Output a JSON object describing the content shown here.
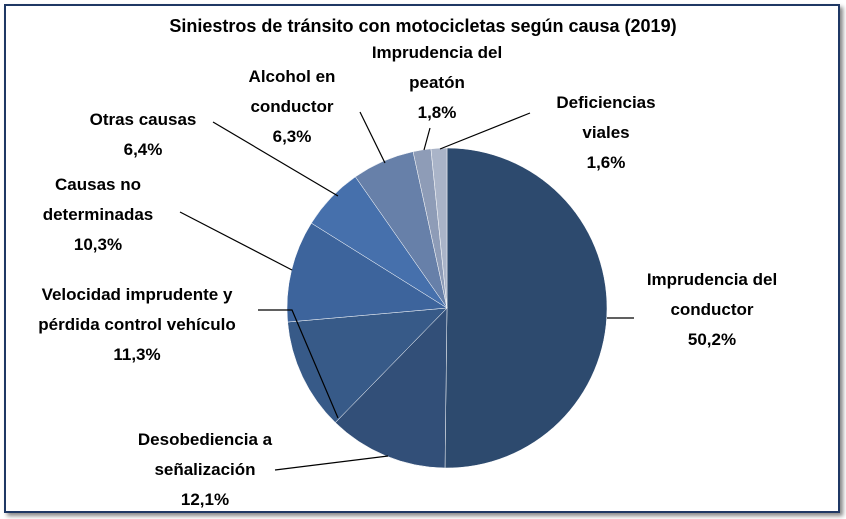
{
  "chart_data": {
    "type": "pie",
    "title": "Siniestros de tránsito con motocicletas según causa (2019)",
    "categories": [
      "Imprudencia del conductor",
      "Desobediencia a señalización",
      "Velocidad imprudente y pérdida control vehículo",
      "Causas no determinadas",
      "Otras causas",
      "Alcohol en conductor",
      "Imprudencia del peatón",
      "Deficiencias viales"
    ],
    "values": [
      50.2,
      12.1,
      11.3,
      10.3,
      6.4,
      6.3,
      1.8,
      1.6
    ],
    "value_labels": [
      "50,2%",
      "12,1%",
      "11,3%",
      "10,3%",
      "6,4%",
      "6,3%",
      "1,8%",
      "1,6%"
    ],
    "colors": [
      "#2d4a6e",
      "#324f78",
      "#375a88",
      "#3d649c",
      "#4670ac",
      "#6780a9",
      "#8e9cb7",
      "#aab4c8"
    ]
  }
}
